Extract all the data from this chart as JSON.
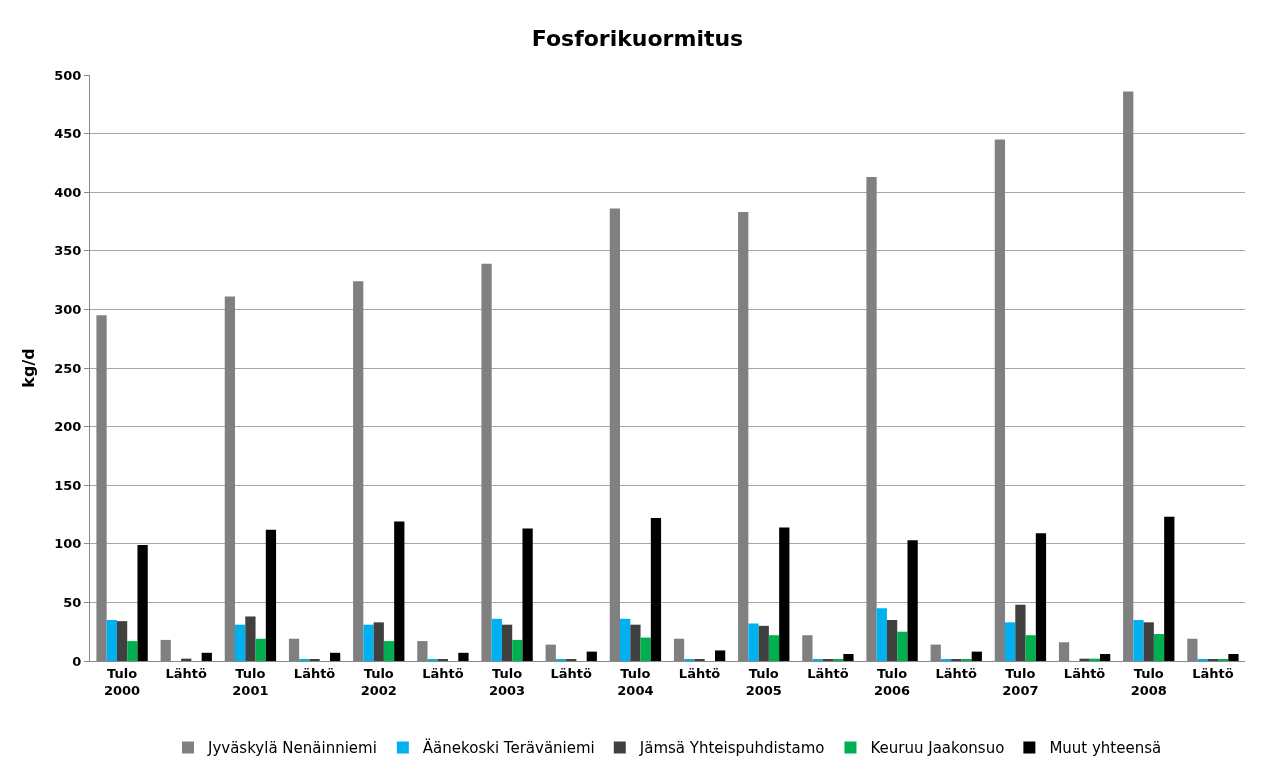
{
  "chart_data": {
    "type": "bar",
    "title": "Fosforikuormitus",
    "ylabel": "kg/d",
    "categories": [
      "Tulo\n2000",
      "Lähtö",
      "Tulo\n2001",
      "Lähtö",
      "Tulo\n2002",
      "Lähtö",
      "Tulo\n2003",
      "Lähtö",
      "Tulo\n2004",
      "Lähtö",
      "Tulo\n2005",
      "Lähtö",
      "Tulo\n2006",
      "Lähtö",
      "Tulo\n2007",
      "Lähtö",
      "Tulo\n2008",
      "Lähtö"
    ],
    "series": [
      {
        "name": "Jyväskylä Nenäinniemi",
        "color": "#808080",
        "values": [
          295,
          18,
          311,
          19,
          324,
          17,
          339,
          14,
          386,
          19,
          383,
          22,
          413,
          14,
          445,
          16,
          486,
          19
        ]
      },
      {
        "name": "Äänekoski Teräväniemi",
        "color": "#00b0f0",
        "values": [
          35,
          0,
          31,
          1,
          31,
          1,
          36,
          1,
          36,
          1,
          32,
          1,
          45,
          1,
          33,
          0,
          35,
          1
        ]
      },
      {
        "name": "Jämsä Yhteispuhdistamo",
        "color": "#404040",
        "values": [
          34,
          2,
          38,
          1,
          33,
          1,
          31,
          1,
          31,
          1,
          30,
          1,
          35,
          1,
          48,
          2,
          33,
          1
        ]
      },
      {
        "name": "Keuruu Jaakonsuo",
        "color": "#00b050",
        "values": [
          17,
          0,
          19,
          0,
          17,
          0,
          18,
          0,
          20,
          0,
          22,
          1,
          25,
          1,
          22,
          2,
          23,
          1
        ]
      },
      {
        "name": "Muut yhteensä",
        "color": "#000000",
        "values": [
          99,
          7,
          112,
          7,
          119,
          7,
          113,
          8,
          122,
          9,
          114,
          6,
          103,
          8,
          109,
          6,
          123,
          6
        ]
      }
    ],
    "ylim": [
      0,
      500
    ],
    "yticks": [
      0,
      50,
      100,
      150,
      200,
      250,
      300,
      350,
      400,
      450,
      500
    ],
    "grid": "y",
    "legend": "bottom"
  }
}
